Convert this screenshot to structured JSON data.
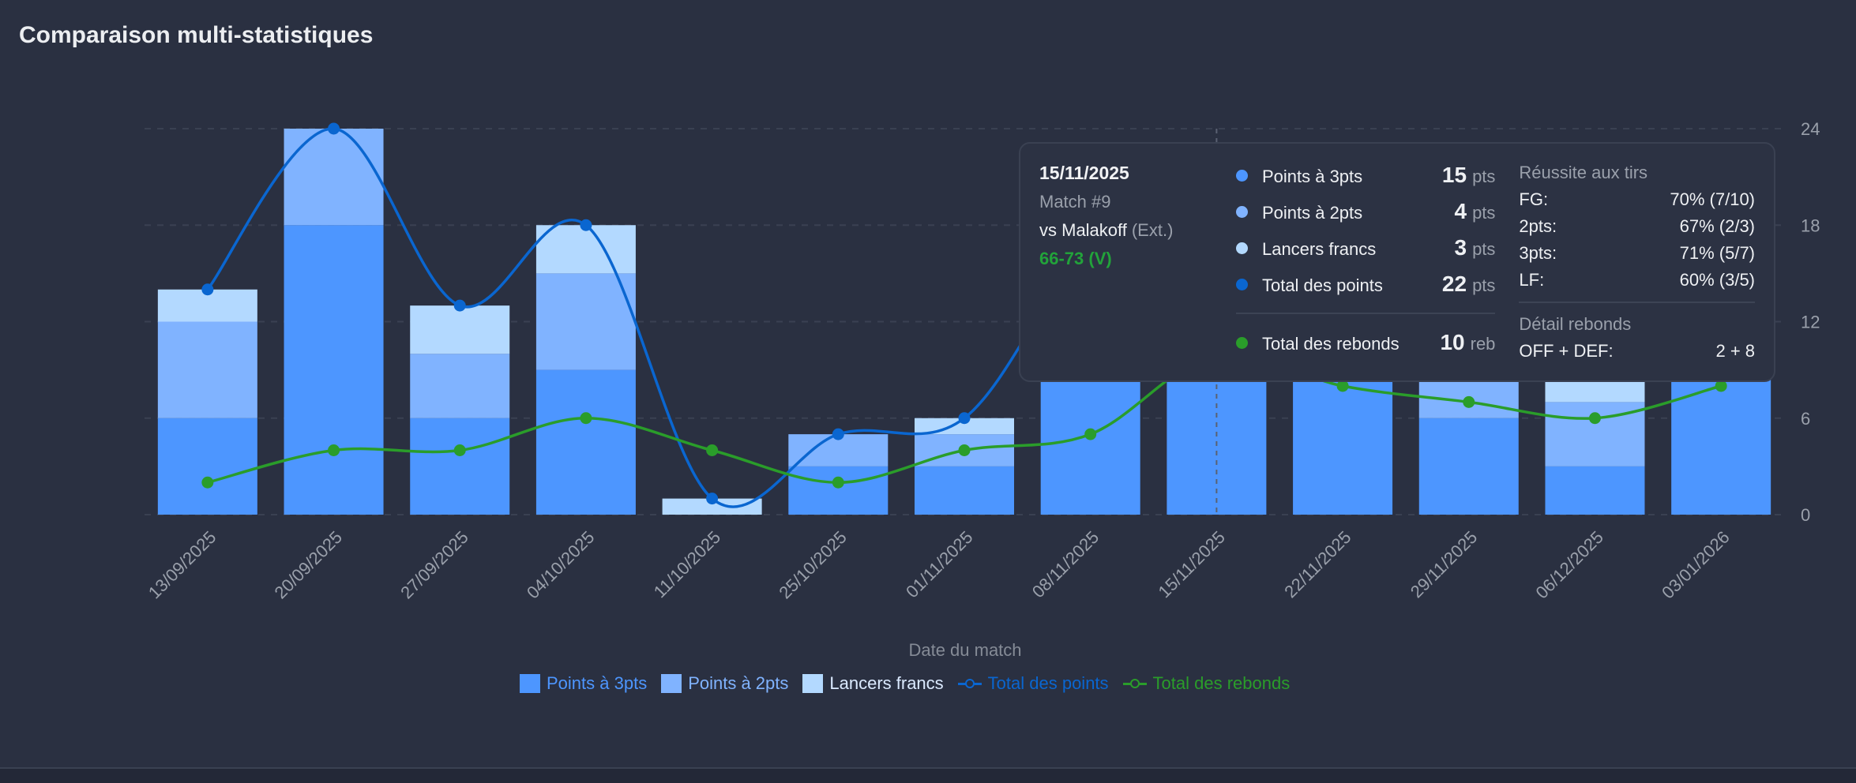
{
  "title": "Comparaison multi-statistiques",
  "colors": {
    "pts3": "#4d96ff",
    "pts2": "#80b3ff",
    "lf": "#b3d9ff",
    "total": "#0a66d0",
    "reb": "#2a9d2a",
    "grid": "#3a4152"
  },
  "chart_data": {
    "type": "bar",
    "stacked": true,
    "title": "Comparaison multi-statistiques",
    "xlabel": "Date du match",
    "ylabel": "",
    "ylim": [
      0,
      24
    ],
    "yticks": [
      "0",
      "6",
      "12",
      "18",
      "24"
    ],
    "grid": true,
    "legend_position": "bottom",
    "categories": [
      "13/09/2025",
      "20/09/2025",
      "27/09/2025",
      "04/10/2025",
      "11/10/2025",
      "25/10/2025",
      "01/11/2025",
      "08/11/2025",
      "15/11/2025",
      "22/11/2025",
      "29/11/2025",
      "06/12/2025",
      "03/01/2026"
    ],
    "series": [
      {
        "name": "Points à 3pts",
        "kind": "bar",
        "values": [
          6,
          18,
          6,
          9,
          0,
          3,
          3,
          12,
          15,
          9,
          6,
          3,
          12
        ]
      },
      {
        "name": "Points à 2pts",
        "kind": "bar",
        "values": [
          6,
          6,
          4,
          6,
          0,
          2,
          2,
          4,
          4,
          4,
          4,
          4,
          4
        ]
      },
      {
        "name": "Lancers francs",
        "kind": "bar",
        "values": [
          2,
          0,
          3,
          3,
          1,
          0,
          1,
          1,
          3,
          2,
          3,
          4,
          3
        ]
      },
      {
        "name": "Total des points",
        "kind": "line",
        "values": [
          14,
          24,
          13,
          18,
          1,
          5,
          6,
          17,
          22,
          15,
          13,
          11,
          19
        ]
      },
      {
        "name": "Total des rebonds",
        "kind": "line",
        "values": [
          2,
          4,
          4,
          6,
          4,
          2,
          4,
          5,
          10,
          8,
          7,
          6,
          8
        ]
      }
    ],
    "highlighted_index": 8
  },
  "tooltip": {
    "date": "15/11/2025",
    "match": "Match #9",
    "opponent": "vs Malakoff",
    "location": "(Ext.)",
    "score": "66-73 (V)",
    "rows": [
      {
        "label": "Points à 3pts",
        "value": "15",
        "unit": "pts"
      },
      {
        "label": "Points à 2pts",
        "value": "4",
        "unit": "pts"
      },
      {
        "label": "Lancers francs",
        "value": "3",
        "unit": "pts"
      },
      {
        "label": "Total des points",
        "value": "22",
        "unit": "pts"
      }
    ],
    "rebounds": {
      "label": "Total des rebonds",
      "value": "10",
      "unit": "reb"
    },
    "shooting_title": "Réussite aux tirs",
    "shooting": [
      {
        "label": "FG:",
        "value": "70% (7/10)"
      },
      {
        "label": "2pts:",
        "value": "67% (2/3)"
      },
      {
        "label": "3pts:",
        "value": "71% (5/7)"
      },
      {
        "label": "LF:",
        "value": "60% (3/5)"
      }
    ],
    "rebound_detail_title": "Détail rebonds",
    "rebound_detail": {
      "label": "OFF + DEF:",
      "value": "2 + 8"
    }
  }
}
